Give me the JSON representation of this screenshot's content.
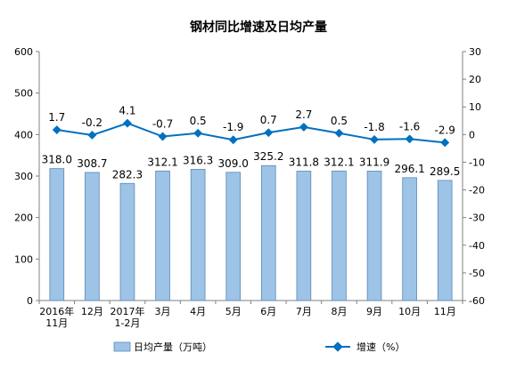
{
  "chart_data": {
    "type": "bar+line",
    "title": "钢材同比增速及日均产量",
    "categories": [
      "2016年\n11月",
      "12月",
      "2017年\n1-2月",
      "3月",
      "4月",
      "5月",
      "6月",
      "7月",
      "8月",
      "9月",
      "10月",
      "11月"
    ],
    "series": [
      {
        "name": "日均产量（万吨）",
        "type": "bar",
        "axis": "left",
        "color": "#9DC3E6",
        "values": [
          318.0,
          308.7,
          282.3,
          312.1,
          316.3,
          309.0,
          325.2,
          311.8,
          312.1,
          311.9,
          296.1,
          289.5
        ],
        "labels": [
          "318.0",
          "308.7",
          "282.3",
          "312.1",
          "316.3",
          "309.0",
          "325.2",
          "311.8",
          "312.1",
          "311.9",
          "296.1",
          "289.5"
        ]
      },
      {
        "name": "增速（%）",
        "type": "line",
        "axis": "right",
        "color": "#0070C0",
        "values": [
          1.7,
          -0.2,
          4.1,
          -0.7,
          0.5,
          -1.9,
          0.7,
          2.7,
          0.5,
          -1.8,
          -1.6,
          -2.9
        ],
        "labels": [
          "1.7",
          "-0.2",
          "4.1",
          "-0.7",
          "0.5",
          "-1.9",
          "0.7",
          "2.7",
          "0.5",
          "-1.8",
          "-1.6",
          "-2.9"
        ]
      }
    ],
    "left_axis": {
      "min": 0,
      "max": 600,
      "step": 100,
      "ticks": [
        "0",
        "100",
        "200",
        "300",
        "400",
        "500",
        "600"
      ]
    },
    "right_axis": {
      "min": -60,
      "max": 30,
      "step": 10,
      "ticks": [
        "-60",
        "-50",
        "-40",
        "-30",
        "-20",
        "-10",
        "0",
        "10",
        "20",
        "30"
      ]
    },
    "grid": false,
    "legend_position": "bottom"
  }
}
